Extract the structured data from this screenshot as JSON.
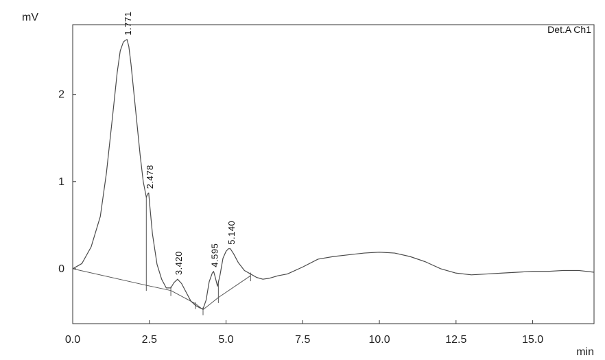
{
  "chart_data": {
    "type": "line",
    "title": "",
    "channel": "Det.A Ch1",
    "xlabel": "min",
    "ylabel": "mV",
    "xlim": [
      0,
      17
    ],
    "ylim": [
      -0.63,
      2.8
    ],
    "x_ticks": [
      0.0,
      2.5,
      5.0,
      7.5,
      10.0,
      12.5,
      15.0
    ],
    "x_tick_labels": [
      "0.0",
      "2.5",
      "5.0",
      "7.5",
      "10.0",
      "12.5",
      "15.0"
    ],
    "y_ticks": [
      0,
      1,
      2
    ],
    "y_tick_labels": [
      "0",
      "1",
      "2"
    ],
    "grid": false,
    "series": [
      {
        "x": [
          0.0,
          0.3,
          0.6,
          0.9,
          1.1,
          1.3,
          1.45,
          1.55,
          1.65,
          1.71,
          1.771,
          1.83,
          1.9,
          2.0,
          2.1,
          2.2,
          2.3,
          2.4,
          2.45,
          2.478,
          2.52,
          2.6,
          2.75,
          2.9,
          3.05,
          3.2,
          3.3,
          3.42,
          3.55,
          3.7,
          3.85,
          4.0,
          4.15,
          4.25,
          4.35,
          4.45,
          4.55,
          4.595,
          4.65,
          4.72,
          4.8,
          4.9,
          5.0,
          5.08,
          5.14,
          5.25,
          5.4,
          5.6,
          5.8,
          6.0,
          6.2,
          6.4,
          6.7,
          7.0,
          7.5,
          8.0,
          8.5,
          9.0,
          9.5,
          10.0,
          10.5,
          11.0,
          11.5,
          12.0,
          12.5,
          13.0,
          13.5,
          14.0,
          14.5,
          15.0,
          15.5,
          16.0,
          16.5,
          17.0
        ],
        "y": [
          0.0,
          0.06,
          0.25,
          0.6,
          1.1,
          1.75,
          2.25,
          2.5,
          2.6,
          2.62,
          2.63,
          2.55,
          2.35,
          2.0,
          1.65,
          1.3,
          1.0,
          0.82,
          0.86,
          0.87,
          0.7,
          0.4,
          0.05,
          -0.12,
          -0.22,
          -0.22,
          -0.16,
          -0.12,
          -0.17,
          -0.27,
          -0.37,
          -0.42,
          -0.45,
          -0.46,
          -0.36,
          -0.15,
          -0.05,
          -0.03,
          -0.1,
          -0.2,
          -0.08,
          0.12,
          0.2,
          0.23,
          0.23,
          0.17,
          0.07,
          -0.02,
          -0.06,
          -0.1,
          -0.12,
          -0.11,
          -0.08,
          -0.06,
          0.02,
          0.11,
          0.14,
          0.16,
          0.18,
          0.19,
          0.18,
          0.14,
          0.08,
          0.0,
          -0.05,
          -0.07,
          -0.06,
          -0.05,
          -0.04,
          -0.03,
          -0.03,
          -0.02,
          -0.02,
          -0.04
        ]
      }
    ],
    "peaks": [
      {
        "x": 1.771,
        "label": "1.771"
      },
      {
        "x": 2.478,
        "label": "2.478"
      },
      {
        "x": 3.42,
        "label": "3.420"
      },
      {
        "x": 4.595,
        "label": "4.595"
      },
      {
        "x": 5.14,
        "label": "5.140"
      }
    ],
    "baseline": {
      "x": [
        0.0,
        2.4,
        3.2,
        4.0,
        4.25,
        4.75,
        5.8
      ],
      "y": [
        0.0,
        -0.19,
        -0.25,
        -0.4,
        -0.47,
        -0.33,
        -0.08
      ]
    },
    "boundary_marks": {
      "x": [
        2.4,
        3.2,
        4.0,
        4.25,
        4.75,
        5.8
      ]
    },
    "colors": {
      "trace": "#4a4a4a",
      "baseline": "#555555",
      "axis": "#333333"
    }
  }
}
